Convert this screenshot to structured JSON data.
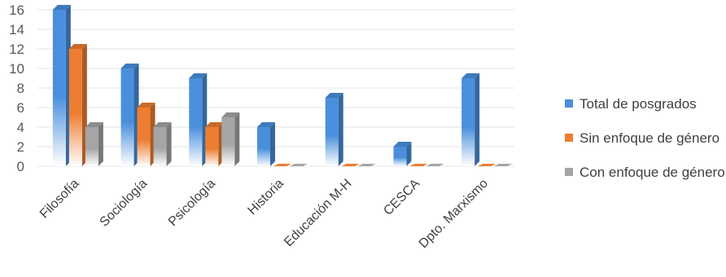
{
  "chart_data": {
    "type": "bar",
    "categories": [
      "Filosofía",
      "Sociología",
      "Psicología",
      "Historia",
      "Educación M-H",
      "CESCA",
      "Dpto. Marxismo"
    ],
    "series": [
      {
        "name": "Total de posgrados",
        "color": "#4a8fdc",
        "values": [
          16,
          10,
          9,
          4,
          7,
          2,
          9
        ]
      },
      {
        "name": "Sin enfoque de género",
        "color": "#ed7d31",
        "values": [
          12,
          6,
          4,
          0,
          0,
          0,
          0
        ]
      },
      {
        "name": "Con enfoque de género",
        "color": "#a5a5a5",
        "values": [
          4,
          4,
          5,
          0,
          0,
          0,
          0
        ]
      }
    ],
    "yticks": [
      "0",
      "2",
      "4",
      "6",
      "8",
      "10",
      "12",
      "14",
      "16"
    ],
    "ylim": [
      0,
      16
    ],
    "grid": true,
    "legend": "right",
    "style": "3d-gradient"
  }
}
